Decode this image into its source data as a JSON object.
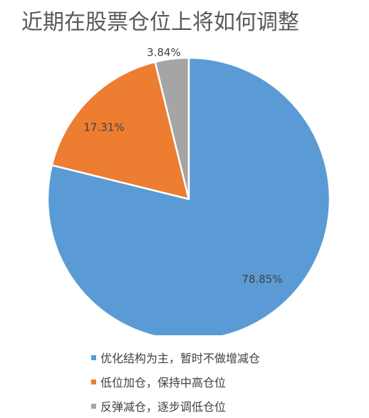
{
  "chart_data": {
    "type": "pie",
    "title": "近期在股票仓位上将如何调整",
    "slices": [
      {
        "label": "优化结构为主，暂时不做增减仓",
        "value": 78.85,
        "display": "78.85%",
        "color": "#5b9bd5"
      },
      {
        "label": "低位加仓，保持中高仓位",
        "value": 17.31,
        "display": "17.31%",
        "color": "#ed7d31"
      },
      {
        "label": "反弹减仓，逐步调低仓位",
        "value": 3.84,
        "display": "3.84%",
        "color": "#a5a5a5"
      }
    ],
    "legend_position": "bottom"
  }
}
